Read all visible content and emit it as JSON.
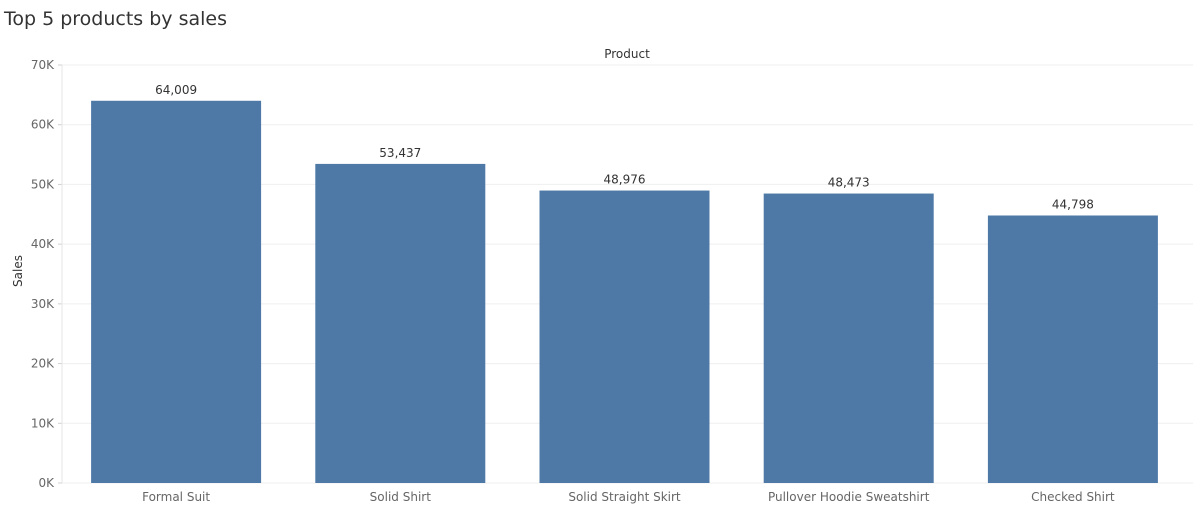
{
  "page_title": "Top 5 products by sales",
  "chart_data": {
    "type": "bar",
    "title": "Top 5 products by sales",
    "xlabel": "Product",
    "ylabel": "Sales",
    "categories": [
      "Formal Suit",
      "Solid Shirt",
      "Solid Straight Skirt",
      "Pullover Hoodie Sweatshirt",
      "Checked Shirt"
    ],
    "values": [
      64009,
      53437,
      48976,
      48473,
      44798
    ],
    "data_labels": [
      "64,009",
      "53,437",
      "48,976",
      "48,473",
      "44,798"
    ],
    "ylim": [
      0,
      70000
    ],
    "yticks": [
      0,
      10000,
      20000,
      30000,
      40000,
      50000,
      60000,
      70000
    ],
    "ytick_labels": [
      "0K",
      "10K",
      "20K",
      "30K",
      "40K",
      "50K",
      "60K",
      "70K"
    ],
    "grid": true,
    "legend": "none",
    "colors": {
      "bar": "#4e79a7",
      "grid": "#efefef",
      "axis_text": "#666666",
      "label_text": "#333333"
    }
  }
}
